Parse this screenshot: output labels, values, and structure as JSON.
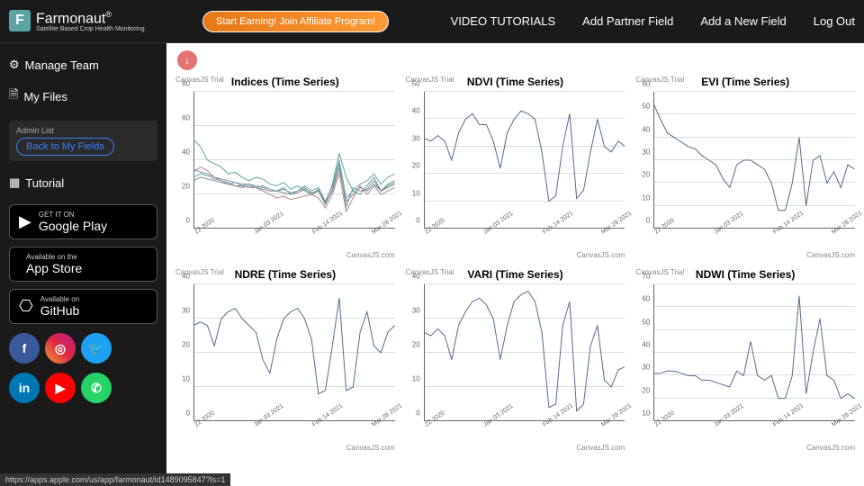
{
  "brand": {
    "name": "Farmonaut",
    "reg": "®",
    "tagline": "Satellite Based Crop Health Monitoring",
    "logo_letter": "F",
    "logo_bg": "#5ba4a4"
  },
  "header": {
    "affiliate": "Start Earning! Join Affiliate Program!",
    "links": [
      "VIDEO TUTORIALS",
      "Add Partner Field",
      "Add a New Field",
      "Log Out"
    ]
  },
  "sidebar": {
    "manage": "Manage Team",
    "files": "My Files",
    "admin_label": "Admin List",
    "back": "Back to My Fields",
    "tutorial": "Tutorial",
    "stores": [
      {
        "sub": "GET IT ON",
        "main": "Google Play"
      },
      {
        "sub": "Available on the",
        "main": "App Store"
      },
      {
        "sub": "Available on",
        "main": "GitHub"
      }
    ],
    "social": [
      {
        "name": "facebook",
        "bg": "#3b5998",
        "txt": "f"
      },
      {
        "name": "instagram",
        "bg": "linear-gradient(45deg,#f09433,#e6683c,#dc2743,#cc2366,#bc1888)",
        "txt": "◎"
      },
      {
        "name": "twitter",
        "bg": "#1da1f2",
        "txt": "🐦"
      },
      {
        "name": "linkedin",
        "bg": "#0077b5",
        "txt": "in"
      },
      {
        "name": "youtube",
        "bg": "#ff0000",
        "txt": "▶"
      },
      {
        "name": "whatsapp",
        "bg": "#25d366",
        "txt": "✆"
      }
    ]
  },
  "status_url": "https://apps.apple.com/us/app/farmonaut/id1489095847?ls=1",
  "trial_text": "CanvasJS Trial",
  "credit_text": "CanvasJS.com",
  "x_ticks": [
    "22 2020",
    "Jan 03 2021",
    "Feb 14 2021",
    "Mar 28 2021"
  ],
  "charts": [
    {
      "title": "Indices (Time Series)",
      "ylim": [
        0,
        80
      ],
      "ystep": 20,
      "series": [
        {
          "color": "#5ba88f",
          "values": [
            52,
            48,
            40,
            38,
            36,
            32,
            33,
            30,
            28,
            30,
            29,
            26,
            25,
            27,
            23,
            25,
            22,
            20,
            23,
            15,
            26,
            44,
            30,
            22,
            20,
            25,
            30,
            22,
            26,
            28
          ]
        },
        {
          "color": "#b08a8a",
          "values": [
            33,
            36,
            34,
            30,
            28,
            27,
            25,
            24,
            25,
            24,
            22,
            20,
            18,
            19,
            17,
            18,
            19,
            20,
            18,
            12,
            20,
            32,
            10,
            18,
            25,
            20,
            25,
            20,
            22,
            24
          ]
        },
        {
          "color": "#7a8aa8",
          "values": [
            35,
            33,
            32,
            30,
            29,
            28,
            27,
            26,
            26,
            25,
            24,
            23,
            22,
            23,
            21,
            22,
            24,
            20,
            22,
            14,
            23,
            38,
            13,
            24,
            22,
            23,
            28,
            22,
            25,
            27
          ]
        },
        {
          "color": "#6aa8a8",
          "values": [
            30,
            32,
            31,
            29,
            28,
            26,
            27,
            25,
            26,
            24,
            25,
            23,
            22,
            24,
            20,
            22,
            25,
            22,
            24,
            16,
            25,
            40,
            18,
            22,
            26,
            28,
            32,
            26,
            30,
            32
          ]
        },
        {
          "color": "#888888",
          "values": [
            28,
            30,
            29,
            28,
            27,
            26,
            25,
            25,
            24,
            24,
            23,
            22,
            22,
            21,
            20,
            21,
            23,
            21,
            22,
            15,
            22,
            35,
            16,
            20,
            24,
            22,
            26,
            22,
            24,
            26
          ]
        }
      ]
    },
    {
      "title": "NDVI (Time Series)",
      "ylim": [
        0,
        50
      ],
      "ystep": 10,
      "series": [
        {
          "color": "#5a6a8a",
          "values": [
            33,
            32,
            34,
            32,
            25,
            35,
            40,
            42,
            38,
            38,
            32,
            22,
            35,
            40,
            43,
            42,
            40,
            28,
            10,
            12,
            30,
            42,
            11,
            14,
            28,
            40,
            30,
            28,
            32,
            30
          ]
        }
      ]
    },
    {
      "title": "EVI (Time Series)",
      "ylim": [
        0,
        60
      ],
      "ystep": 10,
      "series": [
        {
          "color": "#5a6a8a",
          "values": [
            55,
            48,
            42,
            40,
            38,
            36,
            35,
            32,
            30,
            28,
            22,
            18,
            28,
            30,
            30,
            28,
            26,
            20,
            8,
            8,
            20,
            40,
            10,
            30,
            32,
            20,
            25,
            18,
            28,
            26
          ]
        }
      ]
    },
    {
      "title": "NDRE (Time Series)",
      "ylim": [
        0,
        40
      ],
      "ystep": 10,
      "series": [
        {
          "color": "#5a6a8a",
          "values": [
            28,
            29,
            28,
            22,
            30,
            32,
            33,
            30,
            28,
            26,
            18,
            14,
            24,
            30,
            32,
            33,
            30,
            24,
            8,
            9,
            22,
            36,
            9,
            10,
            26,
            32,
            22,
            20,
            26,
            28
          ]
        }
      ]
    },
    {
      "title": "VARI (Time Series)",
      "ylim": [
        0,
        40
      ],
      "ystep": 10,
      "series": [
        {
          "color": "#5a6a8a",
          "values": [
            26,
            25,
            27,
            25,
            18,
            28,
            32,
            35,
            36,
            34,
            30,
            18,
            28,
            35,
            37,
            38,
            35,
            26,
            4,
            5,
            28,
            35,
            3,
            5,
            22,
            28,
            12,
            10,
            15,
            16
          ]
        }
      ]
    },
    {
      "title": "NDWI (Time Series)",
      "ylim": [
        10,
        70
      ],
      "ystep": 10,
      "series": [
        {
          "color": "#5a6a8a",
          "values": [
            31,
            31,
            32,
            32,
            31,
            30,
            30,
            28,
            28,
            27,
            26,
            25,
            32,
            30,
            45,
            30,
            28,
            30,
            20,
            20,
            30,
            65,
            22,
            40,
            55,
            30,
            28,
            20,
            22,
            20
          ]
        }
      ]
    }
  ]
}
